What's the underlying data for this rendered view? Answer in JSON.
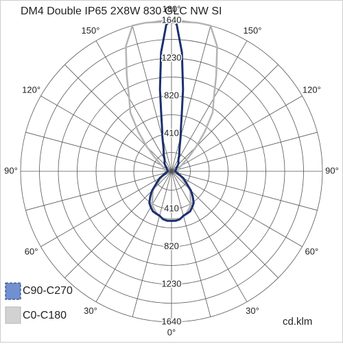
{
  "chart_data": {
    "type": "polar",
    "title": "DM4 Double IP65 2X8W 830 GLC NW SI",
    "unit": "cd.klm",
    "rlim": [
      0,
      1640
    ],
    "rticks": [
      410,
      820,
      1230,
      1640
    ],
    "rminor": [
      205,
      615,
      1025,
      1435
    ],
    "angle_step": 15,
    "angle_ticks": [
      {
        "value": 0,
        "label": "0°"
      },
      {
        "value": 30,
        "label": "30°"
      },
      {
        "value": 60,
        "label": "60°"
      },
      {
        "value": 90,
        "label": "90°"
      },
      {
        "value": 120,
        "label": "120°"
      },
      {
        "value": 150,
        "label": "150°"
      },
      {
        "value": 180,
        "label": "180°"
      }
    ],
    "angles": [
      0,
      5,
      10,
      15,
      20,
      25,
      30,
      35,
      40,
      45,
      60,
      90,
      120,
      130,
      135,
      140,
      145,
      150,
      155,
      160,
      165,
      168,
      170,
      172,
      175,
      178,
      180
    ],
    "series": [
      {
        "name": "C0-C180",
        "color": "#b4b4b4",
        "values": [
          520,
          520,
          520,
          510,
          480,
          450,
          420,
          360,
          320,
          280,
          120,
          60,
          120,
          250,
          380,
          560,
          780,
          920,
          1150,
          1450,
          1640,
          1640,
          1640,
          1635,
          1630,
          1625,
          1620
        ]
      },
      {
        "name": "C90-C270",
        "color": "#1c2f6e",
        "values": [
          540,
          540,
          530,
          500,
          490,
          480,
          450,
          420,
          360,
          300,
          150,
          40,
          60,
          80,
          100,
          120,
          130,
          150,
          200,
          250,
          380,
          500,
          650,
          900,
          1300,
          1600,
          1640
        ]
      }
    ]
  }
}
